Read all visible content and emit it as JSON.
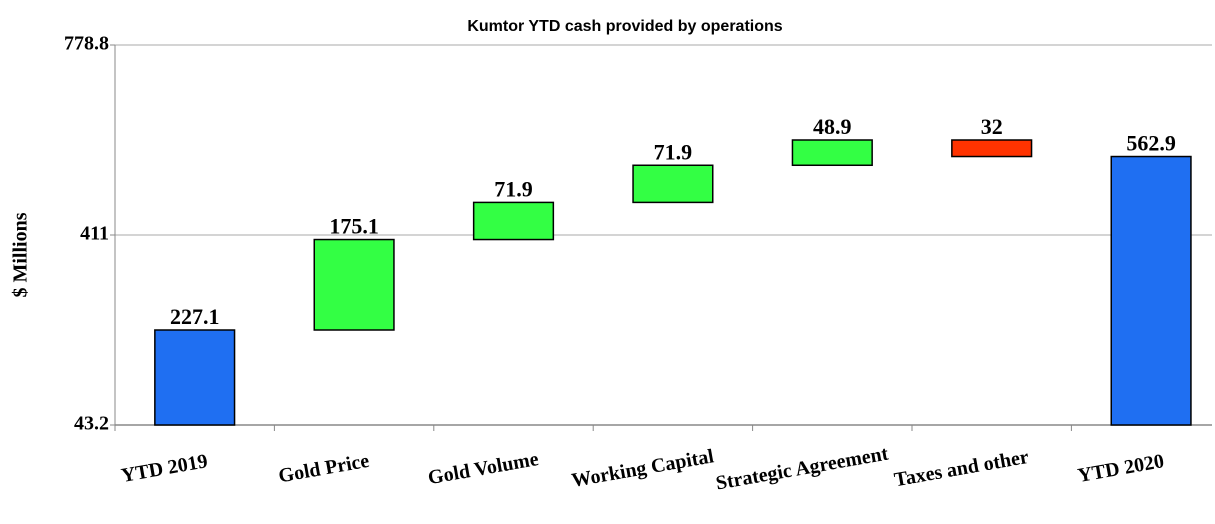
{
  "chart_data": {
    "type": "waterfall",
    "title": "Kumtor YTD cash provided by operations",
    "y_label": "$ Millions",
    "categories": [
      "YTD 2019",
      "Gold Price",
      "Gold Volume",
      "Working Capital",
      "Strategic Agreement",
      "Taxes and other",
      "YTD 2020"
    ],
    "values": [
      227.1,
      175.1,
      71.9,
      71.9,
      48.9,
      32.0,
      562.9
    ],
    "measure": [
      "absolute",
      "increase",
      "increase",
      "increase",
      "increase",
      "decrease",
      "absolute"
    ],
    "colors": {
      "absolute": "#1f6ff2",
      "increase": "#33ff44",
      "decrease": "#ff3300"
    },
    "ylim": [
      43.2,
      778.8
    ],
    "yticks": [
      43.2,
      411.0,
      778.8
    ],
    "grid": true
  }
}
